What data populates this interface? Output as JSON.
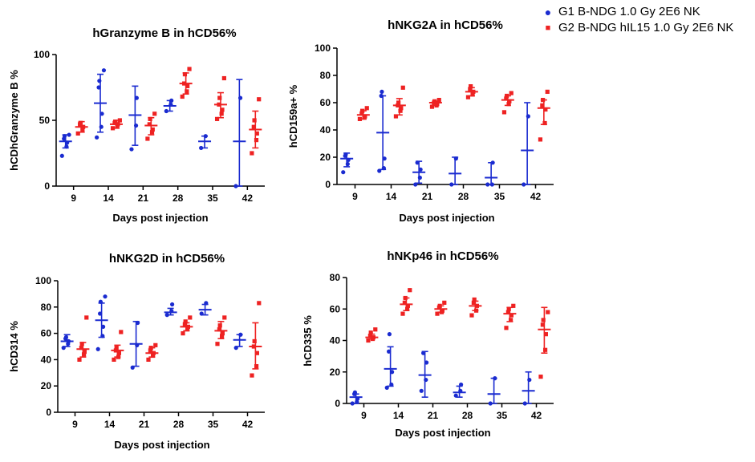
{
  "legend": {
    "g1": {
      "label": "G1 B-NDG 1.0 Gy 2E6 NK",
      "marker": "●",
      "color": "#1a2bd0"
    },
    "g2": {
      "label": "G2 B-NDG hIL15 1.0 Gy 2E6 NK",
      "marker": "■",
      "color": "#ee2222"
    }
  },
  "chart_data": [
    {
      "type": "scatter",
      "title": "hGranzyme B in hCD56%",
      "ylabel": "hCDhGranzyme B %",
      "xlabel": "Days post injection",
      "categories": [
        "9",
        "14",
        "21",
        "28",
        "35",
        "42"
      ],
      "ylim": [
        0,
        100
      ],
      "yticks": [
        0,
        50,
        100
      ],
      "series": [
        {
          "name": "G1 B-NDG 1.0 Gy 2E6 NK",
          "color": "#1a2bd0",
          "marker": "circle",
          "groups": [
            {
              "points": [
                23,
                30,
                33,
                36,
                38,
                39
              ],
              "mean": 34,
              "lo": 29,
              "hi": 39
            },
            {
              "points": [
                37,
                45,
                55,
                75,
                80,
                88
              ],
              "mean": 63,
              "lo": 41,
              "hi": 85
            },
            {
              "points": [
                28,
                46,
                67
              ],
              "mean": 54,
              "lo": 31,
              "hi": 76
            },
            {
              "points": [
                57,
                62,
                65
              ],
              "mean": 61,
              "lo": 57,
              "hi": 65
            },
            {
              "points": [
                29,
                38
              ],
              "mean": 34,
              "lo": 29,
              "hi": 38
            },
            {
              "points": [
                0,
                67
              ],
              "mean": 34,
              "lo": 0,
              "hi": 81
            }
          ]
        },
        {
          "name": "G2 B-NDG hIL15 1.0 Gy 2E6 NK",
          "color": "#ee2222",
          "marker": "square",
          "groups": [
            {
              "points": [
                40,
                43,
                45,
                47,
                48
              ],
              "mean": 45,
              "lo": 41,
              "hi": 49
            },
            {
              "points": [
                44,
                46,
                47,
                48,
                49,
                50
              ],
              "mean": 47,
              "lo": 44,
              "hi": 50
            },
            {
              "points": [
                36,
                41,
                43,
                47,
                51,
                55
              ],
              "mean": 46,
              "lo": 39,
              "hi": 52
            },
            {
              "points": [
                68,
                72,
                76,
                78,
                85,
                89
              ],
              "mean": 78,
              "lo": 70,
              "hi": 86
            },
            {
              "points": [
                51,
                55,
                58,
                62,
                67,
                82
              ],
              "mean": 62,
              "lo": 52,
              "hi": 71
            },
            {
              "points": [
                25,
                35,
                40,
                45,
                50,
                66
              ],
              "mean": 43,
              "lo": 29,
              "hi": 57
            }
          ]
        }
      ]
    },
    {
      "type": "scatter",
      "title": "hNKG2A in hCD56%",
      "ylabel": "hCD159a+ %",
      "xlabel": "Days post injection",
      "categories": [
        "9",
        "14",
        "21",
        "28",
        "35",
        "42"
      ],
      "ylim": [
        0,
        100
      ],
      "yticks": [
        0,
        20,
        40,
        60,
        80,
        100
      ],
      "series": [
        {
          "name": "G1 B-NDG 1.0 Gy 2E6 NK",
          "color": "#1a2bd0",
          "marker": "circle",
          "groups": [
            {
              "points": [
                9,
                15,
                18,
                21,
                22
              ],
              "mean": 19,
              "lo": 13,
              "hi": 23
            },
            {
              "points": [
                10,
                12,
                19,
                65,
                68
              ],
              "mean": 38,
              "lo": 11,
              "hi": 65
            },
            {
              "points": [
                0,
                5,
                11,
                16
              ],
              "mean": 9,
              "lo": 1,
              "hi": 17
            },
            {
              "points": [
                0,
                19
              ],
              "mean": 8,
              "lo": 0,
              "hi": 20
            },
            {
              "points": [
                0,
                0,
                16
              ],
              "mean": 5,
              "lo": 0,
              "hi": 16
            },
            {
              "points": [
                0,
                50
              ],
              "mean": 25,
              "lo": 0,
              "hi": 60
            }
          ]
        },
        {
          "name": "G2 B-NDG hIL15 1.0 Gy 2E6 NK",
          "color": "#ee2222",
          "marker": "square",
          "groups": [
            {
              "points": [
                48,
                49,
                50,
                52,
                54,
                56
              ],
              "mean": 51,
              "lo": 48,
              "hi": 54
            },
            {
              "points": [
                50,
                54,
                56,
                58,
                60,
                71
              ],
              "mean": 58,
              "lo": 51,
              "hi": 63
            },
            {
              "points": [
                57,
                58,
                59,
                60,
                61,
                62
              ],
              "mean": 60,
              "lo": 58,
              "hi": 61
            },
            {
              "points": [
                64,
                66,
                68,
                70,
                72
              ],
              "mean": 68,
              "lo": 65,
              "hi": 71
            },
            {
              "points": [
                53,
                59,
                61,
                63,
                65,
                67
              ],
              "mean": 62,
              "lo": 58,
              "hi": 65
            },
            {
              "points": [
                33,
                45,
                55,
                58,
                62,
                68
              ],
              "mean": 56,
              "lo": 44,
              "hi": 62
            }
          ]
        }
      ]
    },
    {
      "type": "scatter",
      "title": "hNKG2D in hCD56%",
      "ylabel": "hCD314 %",
      "xlabel": "Days post injection",
      "categories": [
        "9",
        "14",
        "21",
        "28",
        "35",
        "42"
      ],
      "ylim": [
        0,
        100
      ],
      "yticks": [
        0,
        20,
        40,
        60,
        80,
        100
      ],
      "series": [
        {
          "name": "G1 B-NDG 1.0 Gy 2E6 NK",
          "color": "#1a2bd0",
          "marker": "circle",
          "groups": [
            {
              "points": [
                49,
                52,
                54,
                56,
                57
              ],
              "mean": 54,
              "lo": 50,
              "hi": 59
            },
            {
              "points": [
                48,
                58,
                65,
                75,
                84,
                88
              ],
              "mean": 70,
              "lo": 57,
              "hi": 83
            },
            {
              "points": [
                34,
                51,
                68
              ],
              "mean": 52,
              "lo": 35,
              "hi": 69
            },
            {
              "points": [
                74,
                77,
                82
              ],
              "mean": 76,
              "lo": 74,
              "hi": 79
            },
            {
              "points": [
                75,
                83
              ],
              "mean": 78,
              "lo": 74,
              "hi": 82
            },
            {
              "points": [
                49,
                59
              ],
              "mean": 55,
              "lo": 50,
              "hi": 59
            }
          ]
        },
        {
          "name": "G2 B-NDG hIL15 1.0 Gy 2E6 NK",
          "color": "#ee2222",
          "marker": "square",
          "groups": [
            {
              "points": [
                40,
                44,
                46,
                49,
                52,
                72
              ],
              "mean": 48,
              "lo": 42,
              "hi": 53
            },
            {
              "points": [
                40,
                42,
                45,
                47,
                49,
                61
              ],
              "mean": 47,
              "lo": 42,
              "hi": 51
            },
            {
              "points": [
                40,
                43,
                45,
                47,
                49,
                51
              ],
              "mean": 45,
              "lo": 42,
              "hi": 49
            },
            {
              "points": [
                60,
                63,
                65,
                67,
                69,
                72
              ],
              "mean": 65,
              "lo": 62,
              "hi": 68
            },
            {
              "points": [
                52,
                58,
                60,
                63,
                66,
                72
              ],
              "mean": 62,
              "lo": 56,
              "hi": 69
            },
            {
              "points": [
                28,
                35,
                45,
                50,
                54,
                83
              ],
              "mean": 50,
              "lo": 33,
              "hi": 68
            }
          ]
        }
      ]
    },
    {
      "type": "scatter",
      "title": "hNKp46 in hCD56%",
      "ylabel": "hCD335 %",
      "xlabel": "Days post injection",
      "categories": [
        "9",
        "14",
        "21",
        "28",
        "35",
        "42"
      ],
      "ylim": [
        0,
        80
      ],
      "yticks": [
        0,
        20,
        40,
        60,
        80
      ],
      "series": [
        {
          "name": "G1 B-NDG 1.0 Gy 2E6 NK",
          "color": "#1a2bd0",
          "marker": "circle",
          "groups": [
            {
              "points": [
                0,
                1,
                3,
                6,
                7
              ],
              "mean": 4,
              "lo": 0,
              "hi": 6
            },
            {
              "points": [
                10,
                12,
                20,
                33,
                44
              ],
              "mean": 22,
              "lo": 11,
              "hi": 36
            },
            {
              "points": [
                8,
                15,
                26,
                32
              ],
              "mean": 18,
              "lo": 4,
              "hi": 33
            },
            {
              "points": [
                5,
                8,
                12
              ],
              "mean": 7,
              "lo": 4,
              "hi": 11
            },
            {
              "points": [
                0,
                16
              ],
              "mean": 6,
              "lo": 0,
              "hi": 16
            },
            {
              "points": [
                0,
                15
              ],
              "mean": 8,
              "lo": 0,
              "hi": 20
            }
          ]
        },
        {
          "name": "G2 B-NDG hIL15 1.0 Gy 2E6 NK",
          "color": "#ee2222",
          "marker": "square",
          "groups": [
            {
              "points": [
                40,
                41,
                42,
                43,
                45,
                47
              ],
              "mean": 42,
              "lo": 41,
              "hi": 44
            },
            {
              "points": [
                57,
                60,
                62,
                64,
                67,
                72
              ],
              "mean": 63,
              "lo": 59,
              "hi": 67
            },
            {
              "points": [
                57,
                58,
                59,
                61,
                62,
                64
              ],
              "mean": 60,
              "lo": 58,
              "hi": 62
            },
            {
              "points": [
                56,
                59,
                62,
                64,
                66
              ],
              "mean": 62,
              "lo": 59,
              "hi": 65
            },
            {
              "points": [
                48,
                53,
                56,
                58,
                60,
                62
              ],
              "mean": 57,
              "lo": 52,
              "hi": 61
            },
            {
              "points": [
                17,
                34,
                44,
                50,
                53,
                58
              ],
              "mean": 47,
              "lo": 32,
              "hi": 61
            }
          ]
        }
      ]
    }
  ]
}
